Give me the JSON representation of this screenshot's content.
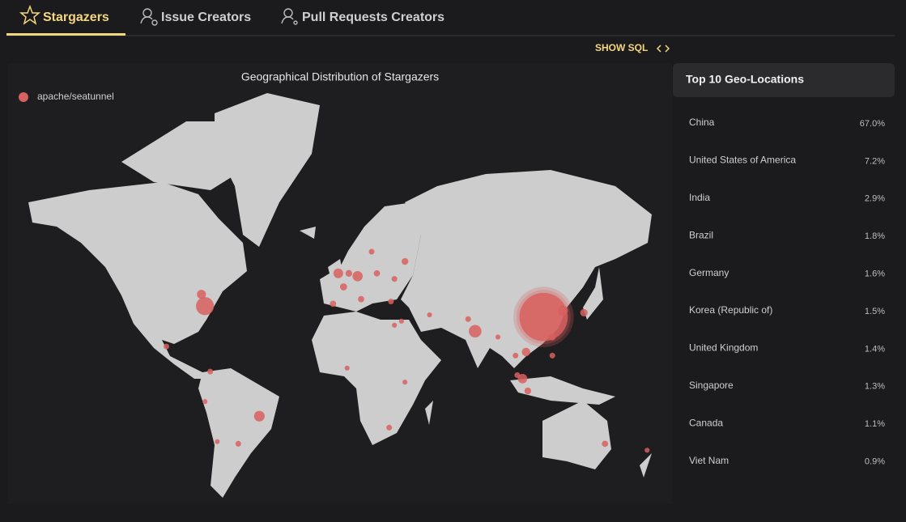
{
  "tabs": [
    "Stargazers",
    "Issue Creators",
    "Pull Requests Creators"
  ],
  "show_sql": "SHOW SQL",
  "chart_data": {
    "type": "map",
    "title": "Geographical Distribution of Stargazers",
    "series": [
      {
        "name": "apache/seatunnel",
        "color": "#d8605e",
        "lon": [
          116,
          -77,
          77,
          -46,
          10,
          127,
          -1,
          104,
          -79,
          106,
          139,
          2,
          37,
          5,
          -4,
          12,
          107,
          151,
          -99,
          -74,
          -58,
          28,
          4,
          29,
          31,
          37,
          21,
          31,
          73,
          121,
          121,
          101,
          100,
          51,
          35,
          175,
          -70,
          -77,
          18,
          90
        ],
        "lat": [
          34,
          39,
          27,
          -20,
          51,
          37,
          52,
          1,
          44,
          16,
          36,
          47,
          56,
          52,
          40,
          42,
          -6,
          -34,
          19,
          5,
          -34,
          -26,
          7,
          41,
          30,
          -1,
          52,
          50,
          33,
          24,
          14,
          3,
          14,
          35,
          32,
          -37,
          -33,
          -12,
          59,
          24
        ],
        "values": [
          67.0,
          7.2,
          2.9,
          1.8,
          1.6,
          1.5,
          1.4,
          1.3,
          1.1,
          0.9,
          0.6,
          0.5,
          0.4,
          0.4,
          0.3,
          0.3,
          0.4,
          0.3,
          0.2,
          0.2,
          0.2,
          0.2,
          0.1,
          0.2,
          0.1,
          0.1,
          0.3,
          0.2,
          0.2,
          0.4,
          0.2,
          0.2,
          0.2,
          0.1,
          0.1,
          0.1,
          0.1,
          0.1,
          0.2,
          0.1
        ]
      }
    ]
  },
  "top_locations": {
    "title": "Top 10 Geo-Locations",
    "rows": [
      {
        "label": "China",
        "value": "67.0%"
      },
      {
        "label": "United States of America",
        "value": "7.2%"
      },
      {
        "label": "India",
        "value": "2.9%"
      },
      {
        "label": "Brazil",
        "value": "1.8%"
      },
      {
        "label": "Germany",
        "value": "1.6%"
      },
      {
        "label": "Korea (Republic of)",
        "value": "1.5%"
      },
      {
        "label": "United Kingdom",
        "value": "1.4%"
      },
      {
        "label": "Singapore",
        "value": "1.3%"
      },
      {
        "label": "Canada",
        "value": "1.1%"
      },
      {
        "label": "Viet Nam",
        "value": "0.9%"
      }
    ]
  }
}
